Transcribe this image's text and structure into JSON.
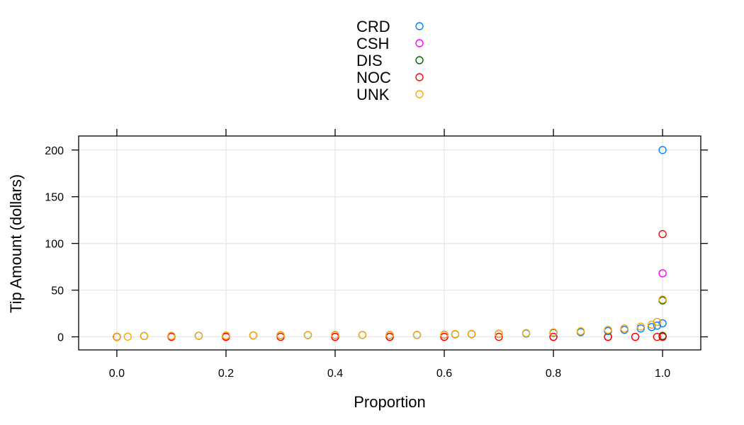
{
  "chart_data": {
    "type": "scatter",
    "title": "",
    "xlabel": "Proportion",
    "ylabel": "Tip Amount (dollars)",
    "xlim": [
      -0.07,
      1.07
    ],
    "ylim": [
      -14,
      215
    ],
    "x_ticks": [
      0.0,
      0.2,
      0.4,
      0.6,
      0.8,
      1.0
    ],
    "x_tick_labels": [
      "0.0",
      "0.2",
      "0.4",
      "0.6",
      "0.8",
      "1.0"
    ],
    "y_ticks": [
      0,
      50,
      100,
      150,
      200
    ],
    "y_tick_labels": [
      "0",
      "50",
      "100",
      "150",
      "200"
    ],
    "grid": true,
    "legend_position": "top",
    "series": [
      {
        "name": "CRD",
        "color": "#0080ff",
        "points": [
          [
            0.0,
            0
          ],
          [
            0.05,
            0.9
          ],
          [
            0.1,
            1.0
          ],
          [
            0.15,
            1.1
          ],
          [
            0.2,
            1.3
          ],
          [
            0.25,
            1.5
          ],
          [
            0.3,
            1.7
          ],
          [
            0.35,
            1.9
          ],
          [
            0.4,
            2.0
          ],
          [
            0.45,
            2.0
          ],
          [
            0.5,
            2.0
          ],
          [
            0.55,
            2.1
          ],
          [
            0.6,
            2.3
          ],
          [
            0.62,
            2.7
          ],
          [
            0.65,
            2.9
          ],
          [
            0.7,
            3.2
          ],
          [
            0.75,
            3.6
          ],
          [
            0.8,
            4.2
          ],
          [
            0.85,
            5.0
          ],
          [
            0.9,
            6.2
          ],
          [
            0.93,
            7.5
          ],
          [
            0.96,
            9.0
          ],
          [
            0.98,
            10.5
          ],
          [
            0.99,
            12.0
          ],
          [
            1.0,
            14.5
          ],
          [
            1.0,
            200
          ]
        ]
      },
      {
        "name": "CSH",
        "color": "#ff00ff",
        "points": [
          [
            0.0,
            0
          ],
          [
            0.2,
            0
          ],
          [
            0.4,
            0
          ],
          [
            0.6,
            0
          ],
          [
            0.8,
            0
          ],
          [
            0.95,
            0
          ],
          [
            1.0,
            0.5
          ],
          [
            1.0,
            68
          ]
        ]
      },
      {
        "name": "DIS",
        "color": "#006400",
        "points": [
          [
            0.0,
            0
          ],
          [
            0.5,
            0
          ],
          [
            0.9,
            0
          ],
          [
            1.0,
            1
          ],
          [
            1.0,
            39
          ]
        ]
      },
      {
        "name": "NOC",
        "color": "#ff0000",
        "points": [
          [
            0.0,
            0
          ],
          [
            0.1,
            0
          ],
          [
            0.2,
            0
          ],
          [
            0.3,
            0
          ],
          [
            0.4,
            0
          ],
          [
            0.5,
            0
          ],
          [
            0.6,
            0
          ],
          [
            0.7,
            0
          ],
          [
            0.8,
            0
          ],
          [
            0.9,
            0
          ],
          [
            0.95,
            0
          ],
          [
            0.99,
            0
          ],
          [
            1.0,
            0
          ],
          [
            1.0,
            110
          ]
        ]
      },
      {
        "name": "UNK",
        "color": "#ffa500",
        "points": [
          [
            0.0,
            0
          ],
          [
            0.02,
            0.2
          ],
          [
            0.05,
            0.8
          ],
          [
            0.1,
            1.0
          ],
          [
            0.15,
            1.1
          ],
          [
            0.2,
            1.3
          ],
          [
            0.25,
            1.6
          ],
          [
            0.3,
            1.8
          ],
          [
            0.35,
            1.9
          ],
          [
            0.4,
            2.0
          ],
          [
            0.45,
            2.0
          ],
          [
            0.5,
            2.0
          ],
          [
            0.55,
            2.0
          ],
          [
            0.6,
            2.2
          ],
          [
            0.62,
            3.0
          ],
          [
            0.65,
            3.1
          ],
          [
            0.7,
            3.4
          ],
          [
            0.75,
            4.0
          ],
          [
            0.8,
            4.8
          ],
          [
            0.85,
            6.0
          ],
          [
            0.9,
            7.5
          ],
          [
            0.93,
            9.0
          ],
          [
            0.96,
            11.0
          ],
          [
            0.98,
            13.0
          ],
          [
            0.99,
            16.0
          ],
          [
            1.0,
            40
          ]
        ]
      }
    ]
  }
}
